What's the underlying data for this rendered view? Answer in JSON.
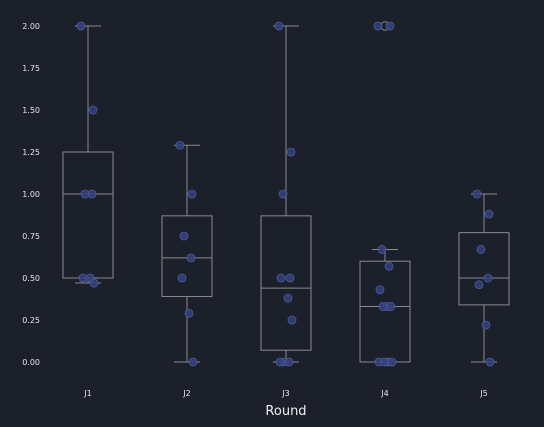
{
  "chart_data": {
    "type": "box",
    "title": "",
    "xlabel": "Round",
    "ylabel": "",
    "ylim": [
      -0.04,
      2.07
    ],
    "yticks": [
      "0.00",
      "0.25",
      "0.50",
      "0.75",
      "1.00",
      "1.25",
      "1.50",
      "1.75",
      "2.00"
    ],
    "grid": false,
    "colors": {
      "background": "#1c202b",
      "box": "#8a8a8a",
      "point": "#34427e",
      "text": "#e6e6e6"
    },
    "categories": [
      "J1",
      "J2",
      "J3",
      "J4",
      "J5"
    ],
    "boxes": [
      {
        "q1": 0.5,
        "median": 1.0,
        "q3": 1.25,
        "whisker_low": 0.47,
        "whisker_high": 2.0,
        "fliers": []
      },
      {
        "q1": 0.39,
        "median": 0.62,
        "q3": 0.87,
        "whisker_low": 0.0,
        "whisker_high": 1.29,
        "fliers": []
      },
      {
        "q1": 0.07,
        "median": 0.44,
        "q3": 0.87,
        "whisker_low": 0.0,
        "whisker_high": 2.0,
        "fliers": []
      },
      {
        "q1": 0.0,
        "median": 0.33,
        "q3": 0.6,
        "whisker_low": 0.0,
        "whisker_high": 0.67,
        "fliers": [
          2.0
        ]
      },
      {
        "q1": 0.34,
        "median": 0.5,
        "q3": 0.77,
        "whisker_low": 0.0,
        "whisker_high": 1.0,
        "fliers": []
      }
    ],
    "points": [
      [
        2.0,
        1.5,
        1.0,
        1.0,
        0.5,
        0.5,
        0.47
      ],
      [
        1.29,
        1.0,
        0.75,
        0.62,
        0.5,
        0.29,
        0.0
      ],
      [
        2.0,
        1.25,
        1.0,
        0.5,
        0.5,
        0.38,
        0.25,
        0.0,
        0.0,
        0.0
      ],
      [
        2.0,
        2.0,
        0.67,
        0.57,
        0.43,
        0.33,
        0.33,
        0.33,
        0.0,
        0.0,
        0.0,
        0.0
      ],
      [
        1.0,
        0.88,
        0.67,
        0.5,
        0.46,
        0.22,
        0.0
      ]
    ]
  }
}
